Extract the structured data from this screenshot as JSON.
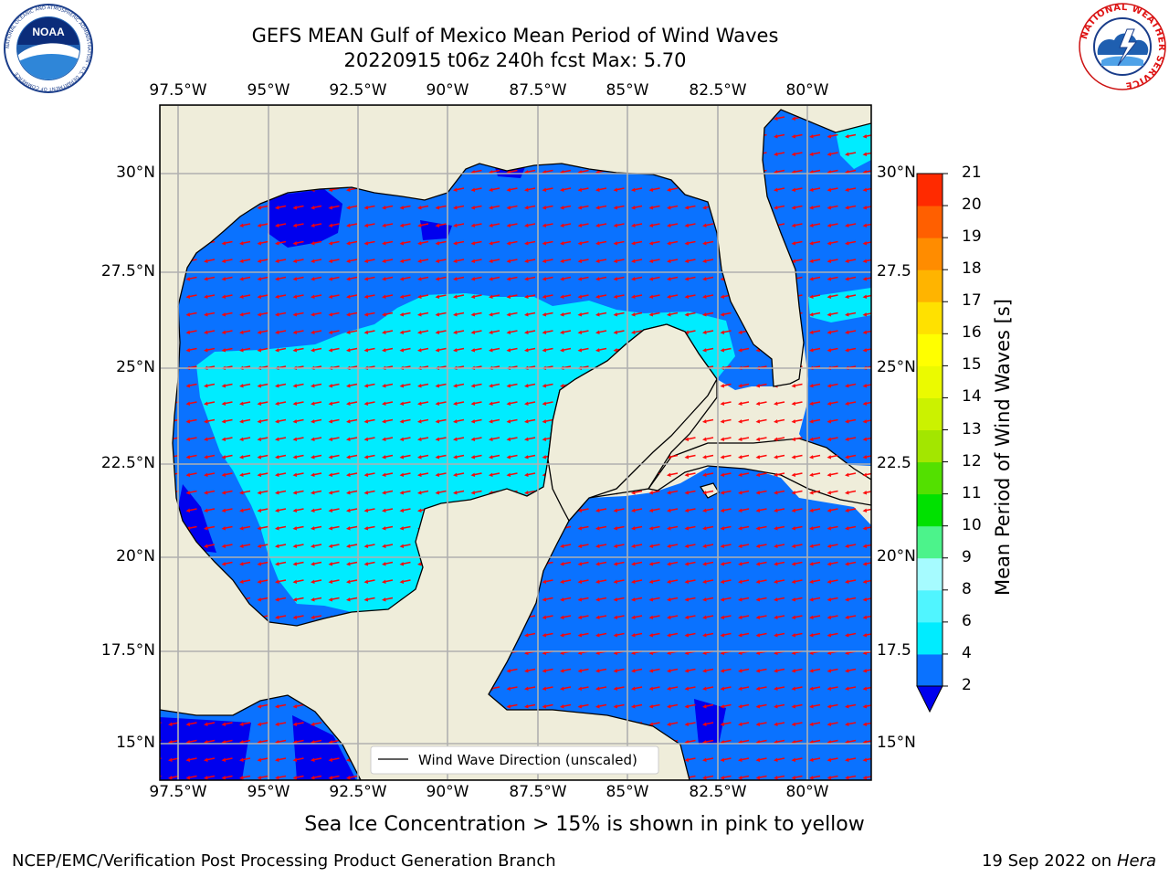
{
  "title": {
    "line1": "GEFS MEAN Gulf of Mexico Mean Period of Wind Waves",
    "line2": "20220915 t06z 240h fcst   Max: 5.70"
  },
  "map": {
    "longitude_ticks": [
      "97.5°W",
      "95°W",
      "92.5°W",
      "90°W",
      "87.5°W",
      "85°W",
      "82.5°W",
      "80°W"
    ],
    "latitude_ticks_left": [
      "30°N",
      "27.5°N",
      "25°N",
      "22.5°N",
      "20°N",
      "17.5°N",
      "15°N"
    ],
    "latitude_ticks_right": [
      "30°N",
      "27.5",
      "25°N",
      "22.5",
      "20°N",
      "17.5",
      "15°N"
    ],
    "legend_label": "Wind Wave Direction (unscaled)",
    "colors": {
      "land": "#efedda",
      "band_0_2": "#0000ee",
      "band_2_4": "#0a72ff",
      "band_4_6": "#00ecff",
      "arrow": "#ff0000",
      "grid": "#b0b0b0"
    }
  },
  "colorbar": {
    "label": "Mean Period of Wind Waves [s]",
    "ticks": [
      "2",
      "4",
      "6",
      "8",
      "9",
      "10",
      "11",
      "12",
      "13",
      "14",
      "15",
      "16",
      "17",
      "18",
      "19",
      "20",
      "21"
    ],
    "band_colors": [
      "#0a72ff",
      "#00ecff",
      "#50f5ff",
      "#a6fbff",
      "#4cf38b",
      "#00e100",
      "#53e000",
      "#a3e600",
      "#cbf200",
      "#ebfa00",
      "#ffff00",
      "#ffe100",
      "#ffb400",
      "#ff8c00",
      "#ff5f00",
      "#ff2a00"
    ],
    "extend_color": "#0000ee"
  },
  "logos": {
    "noaa_text": "NOAA",
    "noaa_ring_text": "NATIONAL OCEANIC AND ATMOSPHERIC ADMINISTRATION · U.S. DEPARTMENT OF COMMERCE",
    "nws_ring_text": "NATIONAL WEATHER SERVICE"
  },
  "footer": {
    "note": "Sea Ice Concentration > 15% is shown in pink to yellow",
    "credit": "NCEP/EMC/Verification Post Processing Product Generation Branch",
    "date": "19 Sep 2022 on",
    "machine": "Hera"
  }
}
